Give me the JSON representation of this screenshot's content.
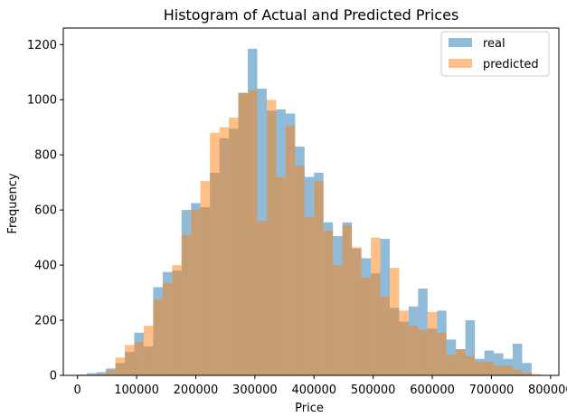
{
  "chart_data": {
    "type": "histogram",
    "title": "Histogram of Actual and Predicted Prices",
    "xlabel": "Price",
    "ylabel": "Frequency",
    "xlim": [
      -24000,
      814000
    ],
    "ylim": [
      0,
      1260
    ],
    "xticks": [
      0,
      100000,
      200000,
      300000,
      400000,
      500000,
      600000,
      700000,
      800000
    ],
    "xtick_labels": [
      "0",
      "100000",
      "200000",
      "300000",
      "400000",
      "500000",
      "600000",
      "700000",
      "800000"
    ],
    "yticks": [
      0,
      200,
      400,
      600,
      800,
      1000,
      1200
    ],
    "ytick_labels": [
      "0",
      "200",
      "400",
      "600",
      "800",
      "1000",
      "1200"
    ],
    "legend_position": "top-right",
    "colors": {
      "real": "#1f77b4",
      "predicted": "#ff7f0e",
      "alpha": 0.5
    },
    "series": [
      {
        "name": "real",
        "bin_start": 0,
        "bin_width": 16000,
        "values": [
          3,
          8,
          12,
          25,
          45,
          85,
          155,
          105,
          320,
          375,
          380,
          600,
          625,
          610,
          735,
          860,
          895,
          1025,
          1185,
          1040,
          960,
          965,
          950,
          830,
          720,
          735,
          555,
          505,
          555,
          460,
          425,
          370,
          495,
          245,
          195,
          250,
          315,
          170,
          235,
          130,
          95,
          200,
          60,
          90,
          80,
          60,
          115,
          45
        ]
      },
      {
        "name": "predicted",
        "bin_start": 16000,
        "bin_width": 16000,
        "values": [
          0,
          3,
          18,
          65,
          110,
          120,
          180,
          275,
          335,
          400,
          510,
          600,
          705,
          880,
          900,
          935,
          1025,
          1035,
          560,
          1000,
          720,
          905,
          760,
          575,
          705,
          525,
          400,
          545,
          465,
          355,
          500,
          285,
          390,
          235,
          180,
          165,
          230,
          155,
          75,
          95,
          70,
          50,
          50,
          35,
          35,
          20,
          10,
          5
        ]
      }
    ]
  }
}
